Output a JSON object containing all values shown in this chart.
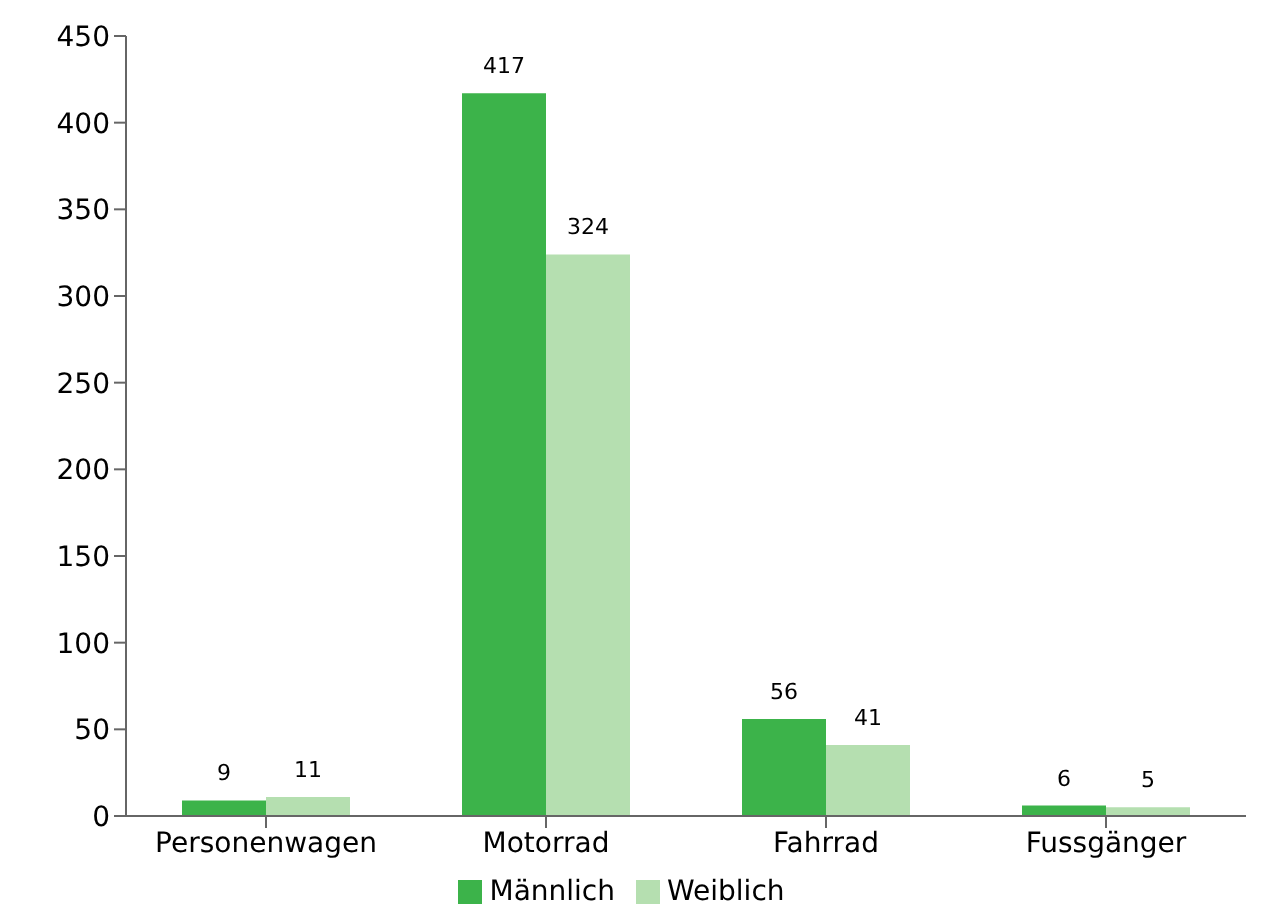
{
  "chart_data": {
    "type": "bar",
    "categories": [
      "Personenwagen",
      "Motorrad",
      "Fahrrad",
      "Fussgänger"
    ],
    "series": [
      {
        "name": "Männlich",
        "color": "#3cb34a",
        "values": [
          9,
          417,
          56,
          6
        ]
      },
      {
        "name": "Weiblich",
        "color": "#b5dfb0",
        "values": [
          11,
          324,
          41,
          5
        ]
      }
    ],
    "ylim": [
      0,
      450
    ],
    "yticks": [
      0,
      50,
      100,
      150,
      200,
      250,
      300,
      350,
      400,
      450
    ],
    "grid": false,
    "legend": "bottom",
    "data_labels": true
  }
}
